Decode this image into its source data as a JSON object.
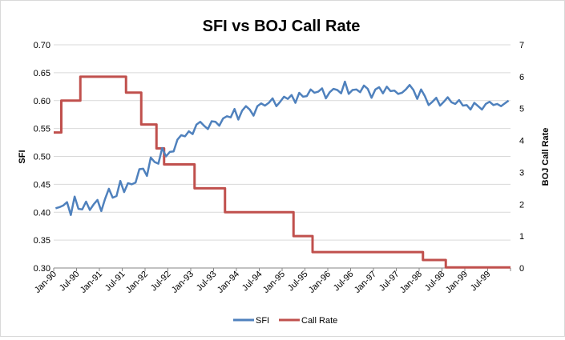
{
  "chart_data": {
    "type": "line",
    "title": "SFI vs BOJ Call Rate",
    "ylabel": "SFI",
    "y2label": "BOJ Call Rate",
    "ylim": [
      0.3,
      0.7
    ],
    "y2lim": [
      0,
      7
    ],
    "yticks": [
      "0.30",
      "0.35",
      "0.40",
      "0.45",
      "0.50",
      "0.55",
      "0.60",
      "0.65",
      "0.70"
    ],
    "y2ticks": [
      "0",
      "1",
      "2",
      "3",
      "4",
      "5",
      "6",
      "7"
    ],
    "xtick_labels": [
      "Jan-90",
      "Jul-90",
      "Jan-91",
      "Jul-91",
      "Jan-92",
      "Jul-92",
      "Jan-93",
      "Jul-93",
      "Jan-94",
      "Jul-94",
      "Jan-95",
      "Jul-95",
      "Jan-96",
      "Jul-96",
      "Jan-97",
      "Jul-97",
      "Jan-98",
      "Jul-98",
      "Jan-99",
      "Jul-99"
    ],
    "x_start": "Jan-90",
    "x_end": "Dec-99",
    "grid": "horizontal",
    "legend_position": "bottom",
    "series": [
      {
        "name": "SFI",
        "axis": "left",
        "color": "#4f81bd",
        "values": [
          0.407,
          0.409,
          0.412,
          0.418,
          0.395,
          0.428,
          0.406,
          0.405,
          0.419,
          0.404,
          0.414,
          0.422,
          0.402,
          0.424,
          0.442,
          0.426,
          0.429,
          0.456,
          0.436,
          0.452,
          0.45,
          0.453,
          0.477,
          0.478,
          0.465,
          0.498,
          0.49,
          0.487,
          0.515,
          0.5,
          0.508,
          0.509,
          0.53,
          0.538,
          0.536,
          0.545,
          0.54,
          0.557,
          0.562,
          0.555,
          0.549,
          0.563,
          0.562,
          0.555,
          0.568,
          0.572,
          0.57,
          0.585,
          0.566,
          0.582,
          0.59,
          0.584,
          0.573,
          0.59,
          0.595,
          0.591,
          0.596,
          0.604,
          0.59,
          0.598,
          0.607,
          0.603,
          0.61,
          0.596,
          0.614,
          0.607,
          0.608,
          0.62,
          0.614,
          0.616,
          0.622,
          0.604,
          0.615,
          0.621,
          0.619,
          0.613,
          0.634,
          0.612,
          0.619,
          0.62,
          0.615,
          0.627,
          0.621,
          0.605,
          0.62,
          0.624,
          0.613,
          0.625,
          0.617,
          0.618,
          0.612,
          0.614,
          0.62,
          0.628,
          0.619,
          0.603,
          0.62,
          0.608,
          0.592,
          0.598,
          0.605,
          0.591,
          0.598,
          0.606,
          0.597,
          0.594,
          0.601,
          0.591,
          0.592,
          0.584,
          0.596,
          0.59,
          0.584,
          0.594,
          0.598,
          0.592,
          0.594,
          0.59,
          0.595,
          0.6
        ]
      },
      {
        "name": "Call Rate",
        "axis": "right",
        "color": "#c0504d",
        "step_points": [
          [
            0,
            4.25
          ],
          [
            2,
            5.25
          ],
          [
            7,
            6.0
          ],
          [
            19,
            5.5
          ],
          [
            23,
            4.5
          ],
          [
            27,
            3.75
          ],
          [
            29,
            3.25
          ],
          [
            37,
            2.5
          ],
          [
            45,
            1.75
          ],
          [
            63,
            1.0
          ],
          [
            68,
            0.5
          ],
          [
            97,
            0.25
          ],
          [
            103,
            0.02
          ],
          [
            119,
            0.02
          ]
        ]
      }
    ]
  }
}
